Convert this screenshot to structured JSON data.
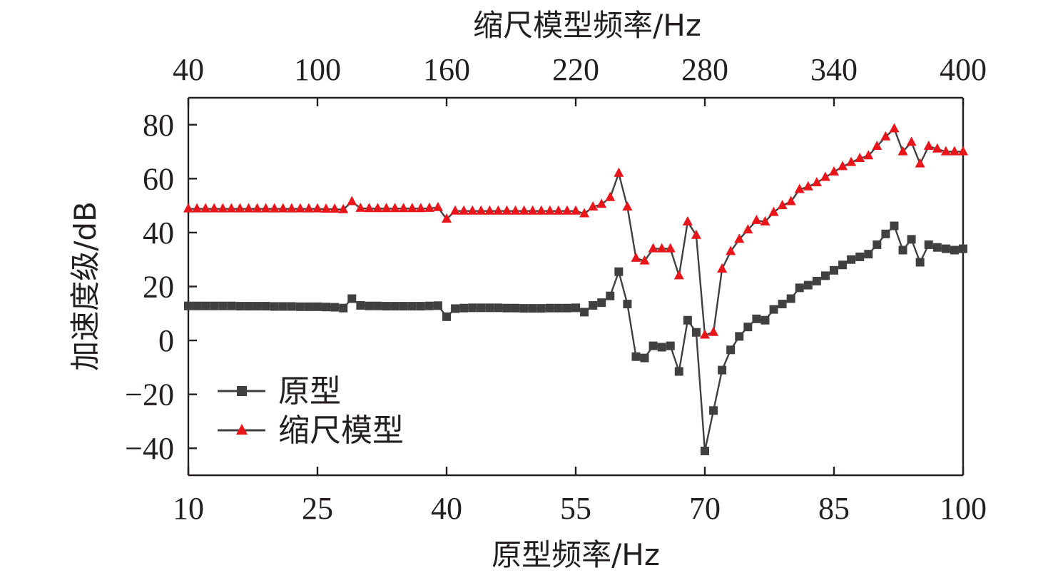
{
  "chart_data": {
    "type": "line",
    "xlabel": "原型频率/Hz",
    "x2label": "缩尺模型频率/Hz",
    "ylabel": "加速度级/dB",
    "xlim": [
      10,
      100
    ],
    "x2lim": [
      40,
      400
    ],
    "ylim": [
      -50,
      90
    ],
    "xticks": [
      "10",
      "25",
      "40",
      "55",
      "70",
      "85",
      "100"
    ],
    "x2ticks": [
      "40",
      "100",
      "160",
      "220",
      "280",
      "340",
      "400"
    ],
    "yticks": [
      "−40",
      "−20",
      "0",
      "20",
      "40",
      "60",
      "80"
    ],
    "ytick_values": [
      -40,
      -20,
      0,
      20,
      40,
      60,
      80
    ],
    "legend_position": "bottom-left",
    "x": [
      10,
      11,
      12,
      13,
      14,
      15,
      16,
      17,
      18,
      19,
      20,
      21,
      22,
      23,
      24,
      25,
      26,
      27,
      28,
      29,
      30,
      31,
      32,
      33,
      34,
      35,
      36,
      37,
      38,
      39,
      40,
      41,
      42,
      43,
      44,
      45,
      46,
      47,
      48,
      49,
      50,
      51,
      52,
      53,
      54,
      55,
      56,
      57,
      58,
      59,
      60,
      61,
      62,
      63,
      64,
      65,
      66,
      67,
      68,
      69,
      70,
      71,
      72,
      73,
      74,
      75,
      76,
      77,
      78,
      79,
      80,
      81,
      82,
      83,
      84,
      85,
      86,
      87,
      88,
      89,
      90,
      91,
      92,
      93,
      94,
      95,
      96,
      97,
      98,
      99,
      100
    ],
    "series": [
      {
        "name": "原型",
        "color": "#404040",
        "marker": "square",
        "values": [
          12.8,
          12.8,
          12.8,
          12.8,
          12.8,
          12.8,
          12.7,
          12.7,
          12.7,
          12.7,
          12.6,
          12.6,
          12.6,
          12.5,
          12.5,
          12.5,
          12.4,
          12.3,
          12.0,
          15.5,
          13.0,
          12.8,
          12.8,
          12.7,
          12.7,
          12.7,
          12.7,
          12.7,
          12.8,
          12.9,
          8.8,
          11.8,
          12.0,
          12.1,
          12.1,
          12.1,
          12.1,
          12.0,
          12.0,
          11.9,
          11.9,
          11.9,
          12.0,
          12.0,
          12.0,
          12.1,
          10.5,
          13.0,
          14.0,
          16.5,
          25.5,
          13.5,
          -6.0,
          -6.5,
          -2.0,
          -2.5,
          -2.0,
          -11.5,
          7.5,
          3.0,
          -41.0,
          -26.0,
          -11.0,
          -3.5,
          1.5,
          5.0,
          8.0,
          7.5,
          11.5,
          13.5,
          15.5,
          19.5,
          20.5,
          22.0,
          24.0,
          26.0,
          28.0,
          30.0,
          31.0,
          32.0,
          35.5,
          39.5,
          42.5,
          33.5,
          37.5,
          29.0,
          35.5,
          34.5,
          34.0,
          33.5,
          34.0
        ]
      },
      {
        "name": "缩尺模型",
        "color": "#e8161b",
        "marker": "triangle",
        "values": [
          48.8,
          48.8,
          48.8,
          48.8,
          48.8,
          48.8,
          48.8,
          48.8,
          48.8,
          48.8,
          48.8,
          48.8,
          48.8,
          48.8,
          48.8,
          48.8,
          48.7,
          48.7,
          48.5,
          51.5,
          49.0,
          48.9,
          48.9,
          48.9,
          48.9,
          48.9,
          48.9,
          48.9,
          49.0,
          49.3,
          45.0,
          48.0,
          48.0,
          48.0,
          48.0,
          48.0,
          48.0,
          48.0,
          48.0,
          48.0,
          48.0,
          48.0,
          48.0,
          48.0,
          48.0,
          48.0,
          47.0,
          49.5,
          50.5,
          53.0,
          62.0,
          49.5,
          30.5,
          29.5,
          34.0,
          34.0,
          34.0,
          24.0,
          44.0,
          39.0,
          2.0,
          3.0,
          26.5,
          33.0,
          37.5,
          41.0,
          44.5,
          44.0,
          47.5,
          50.0,
          51.5,
          56.0,
          57.0,
          58.5,
          60.5,
          62.5,
          64.5,
          66.0,
          67.5,
          68.5,
          72.0,
          75.5,
          78.5,
          70.0,
          73.5,
          65.5,
          72.0,
          71.0,
          70.0,
          70.0,
          70.0
        ]
      }
    ]
  }
}
